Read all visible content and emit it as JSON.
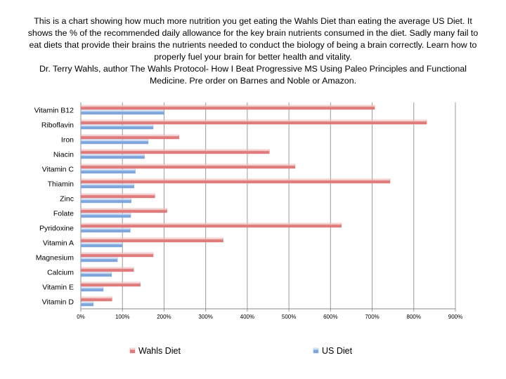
{
  "caption": {
    "paragraph": "This is a chart showing how much more nutrition you get eating the Wahls Diet than eating the average US Diet.   It shows the % of the recommended daily allowance for the  key brain nutrients consumed in the diet.  Sadly many fail to eat diets that provide their brains the nutrients needed to conduct the biology of being a brain correctly.   Learn how to properly fuel your brain for better health and vitality.",
    "author": "Dr. Terry Wahls, author The Wahls Protocol- How I Beat Progressive MS Using Paleo Principles and Functional Medicine.  Pre order on Barnes and Noble or Amazon."
  },
  "chart_data": {
    "type": "bar",
    "orientation": "horizontal",
    "categories": [
      "Vitamin B12",
      "Riboflavin",
      "Iron",
      "Niacin",
      "Vitamin C",
      "Thiamin",
      "Zinc",
      "Folate",
      "Pyridoxine",
      "Vitamin A",
      "Magnesium",
      "Calcium",
      "Vitamin E",
      "Vitamin D"
    ],
    "series": [
      {
        "name": "Wahls Diet",
        "color": "#e07b7b",
        "values": [
          706,
          831,
          236,
          453,
          515,
          743,
          178,
          207,
          626,
          342,
          174,
          127,
          143,
          75
        ]
      },
      {
        "name": "US Diet",
        "color": "#7ea6dc",
        "values": [
          200,
          174,
          162,
          153,
          131,
          128,
          121,
          120,
          119,
          100,
          88,
          74,
          54,
          30
        ]
      }
    ],
    "xlim": [
      0,
      900
    ],
    "xticks": [
      "0%",
      "100%",
      "200%",
      "300%",
      "400%",
      "500%",
      "600%",
      "700%",
      "800%",
      "900%"
    ],
    "grid": true,
    "legend_position": "bottom"
  }
}
